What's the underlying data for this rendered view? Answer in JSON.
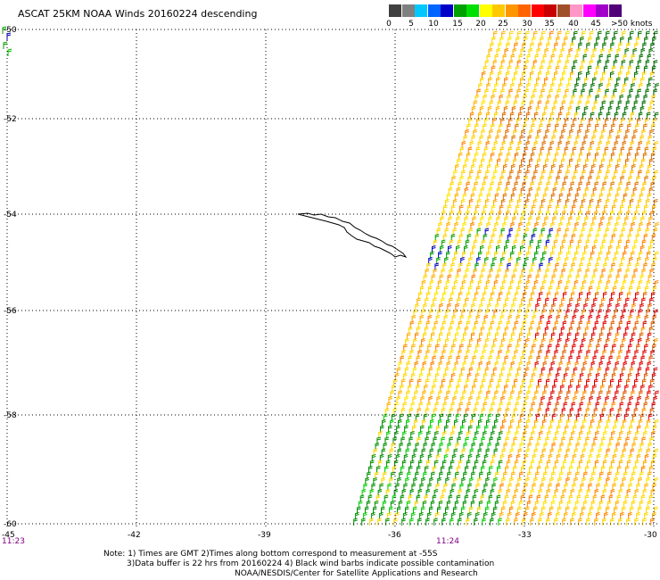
{
  "title": "ASCAT 25KM NOAA Winds 20160224 descending",
  "legend": {
    "colors": [
      "#404040",
      "#808080",
      "#00c8ff",
      "#0064ff",
      "#0000c8",
      "#00a000",
      "#00e000",
      "#ffff00",
      "#ffc800",
      "#ff9600",
      "#ff6400",
      "#ff0000",
      "#c80000",
      "#a05028",
      "#ff96c8",
      "#ff00ff",
      "#a000c8",
      "#500078"
    ],
    "labels": [
      "0",
      "5",
      "10",
      "15",
      "20",
      "25",
      "30",
      "35",
      "40",
      "45",
      ">50 knots"
    ]
  },
  "axes": {
    "lat_labels": [
      "-50",
      "-52",
      "-54",
      "-56",
      "-58",
      "-60"
    ],
    "lon_labels": [
      "-45",
      "-42",
      "-39",
      "-36",
      "-33",
      "-30"
    ]
  },
  "times": [
    "11:23",
    "11:24"
  ],
  "notes": [
    "Note: 1) Times are GMT 2)Times along bottom correspond to measurement at -55S",
    "3)Data buffer is 22 hrs from 20160224 4) Black wind barbs indicate possible contamination",
    "NOAA/NESDIS/Center for Satellite Applications and Research"
  ]
}
